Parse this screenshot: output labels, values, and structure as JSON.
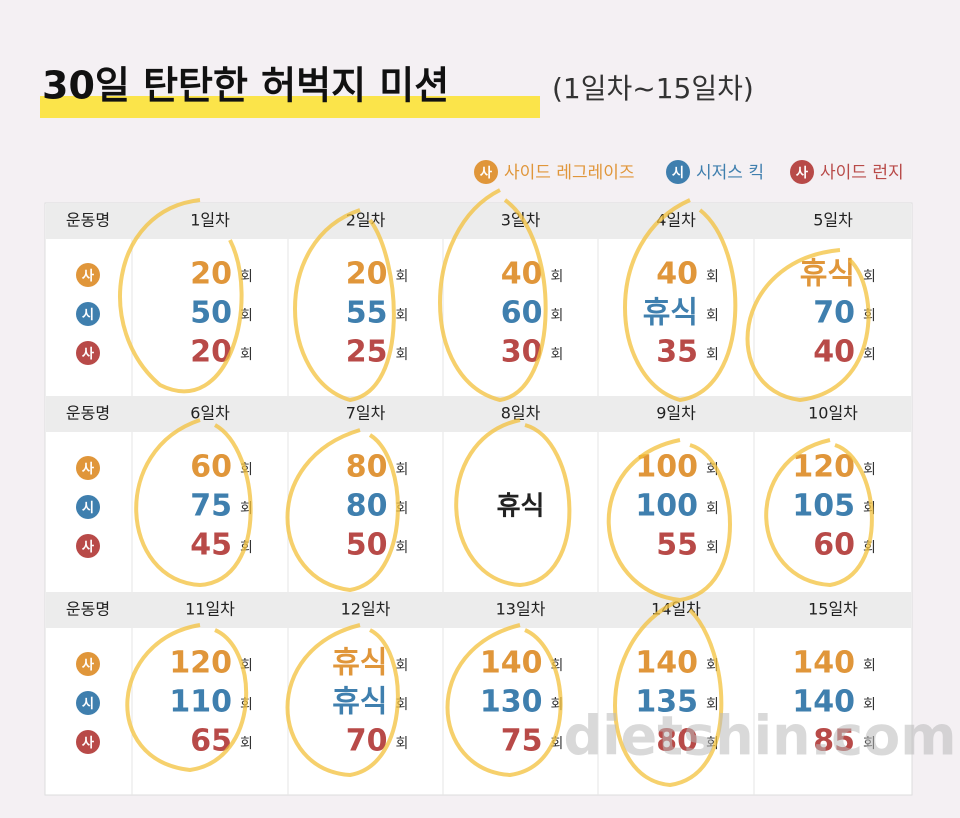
{
  "header": {
    "title": "30일 탄탄한 허벅지 미션",
    "subtitle": "(1일차~15일차)"
  },
  "legend": [
    {
      "badge": "사",
      "label": "사이드 레그레이즈",
      "color": "#e0963a"
    },
    {
      "badge": "시",
      "label": "시저스 킥",
      "color": "#3f7fae"
    },
    {
      "badge": "사",
      "label": "사이드 런지",
      "color": "#b84a48"
    }
  ],
  "table": {
    "row_header": "운동명",
    "unit": "회",
    "blocks": [
      {
        "days": [
          {
            "label": "1일차",
            "values": [
              20,
              50,
              20
            ]
          },
          {
            "label": "2일차",
            "values": [
              20,
              55,
              25
            ]
          },
          {
            "label": "3일차",
            "values": [
              40,
              60,
              30
            ]
          },
          {
            "label": "4일차",
            "values": [
              40,
              "휴식",
              35
            ]
          },
          {
            "label": "5일차",
            "values": [
              "휴식",
              70,
              40
            ]
          }
        ]
      },
      {
        "days": [
          {
            "label": "6일차",
            "values": [
              60,
              75,
              45
            ]
          },
          {
            "label": "7일차",
            "values": [
              80,
              80,
              50
            ]
          },
          {
            "label": "8일차",
            "rest": "휴식"
          },
          {
            "label": "9일차",
            "values": [
              100,
              100,
              55
            ]
          },
          {
            "label": "10일차",
            "values": [
              120,
              105,
              60
            ]
          }
        ]
      },
      {
        "days": [
          {
            "label": "11일차",
            "values": [
              120,
              110,
              65
            ]
          },
          {
            "label": "12일차",
            "values": [
              "휴식",
              "휴식",
              70
            ]
          },
          {
            "label": "13일차",
            "values": [
              140,
              130,
              75
            ]
          },
          {
            "label": "14일차",
            "values": [
              140,
              135,
              80
            ]
          },
          {
            "label": "15일차",
            "values": [
              140,
              140,
              85
            ]
          }
        ]
      }
    ]
  },
  "watermark": "dietshin.com"
}
